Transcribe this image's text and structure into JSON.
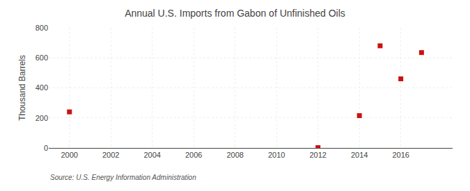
{
  "chart_data": {
    "type": "scatter",
    "title": "Annual U.S. Imports from Gabon of Unfinished Oils",
    "ylabel": "Thousand Barrels",
    "source": "Source: U.S. Energy Information Administration",
    "x": [
      2000,
      2012,
      2014,
      2015,
      2016,
      2017
    ],
    "values": [
      240,
      2,
      215,
      680,
      460,
      635
    ],
    "color": "#cc1111",
    "marker": "square",
    "xlim": [
      1999.0,
      2018.5
    ],
    "ylim": [
      0,
      800
    ],
    "xticks": [
      2000,
      2002,
      2004,
      2006,
      2008,
      2010,
      2012,
      2014,
      2016
    ],
    "yticks": [
      0,
      200,
      400,
      600,
      800
    ],
    "grid": true
  }
}
